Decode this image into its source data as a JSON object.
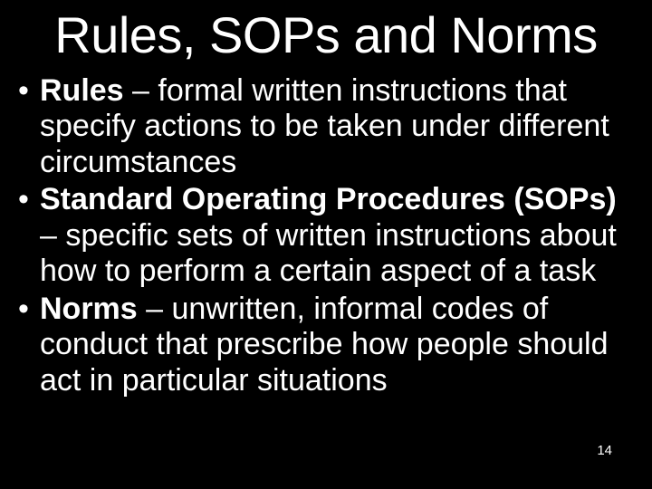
{
  "slide": {
    "background_color": "#000000",
    "text_color": "#ffffff",
    "title": {
      "text": "Rules, SOPs and Norms",
      "fontsize": 56,
      "font_weight": "normal",
      "align": "center"
    },
    "bullets": {
      "fontsize": 34,
      "line_height": 1.16,
      "items": [
        {
          "term": "Rules",
          "definition": " – formal written instructions that specify actions to be taken under different circumstances"
        },
        {
          "term": "Standard Operating Procedures (SOPs)",
          "definition": " – specific sets of written instructions about how to perform a certain aspect of a task"
        },
        {
          "term": "Norms",
          "definition": " – unwritten, informal codes of conduct that prescribe how people should act in particular situations"
        }
      ]
    },
    "page_number": {
      "text": "14",
      "fontsize": 15
    }
  }
}
